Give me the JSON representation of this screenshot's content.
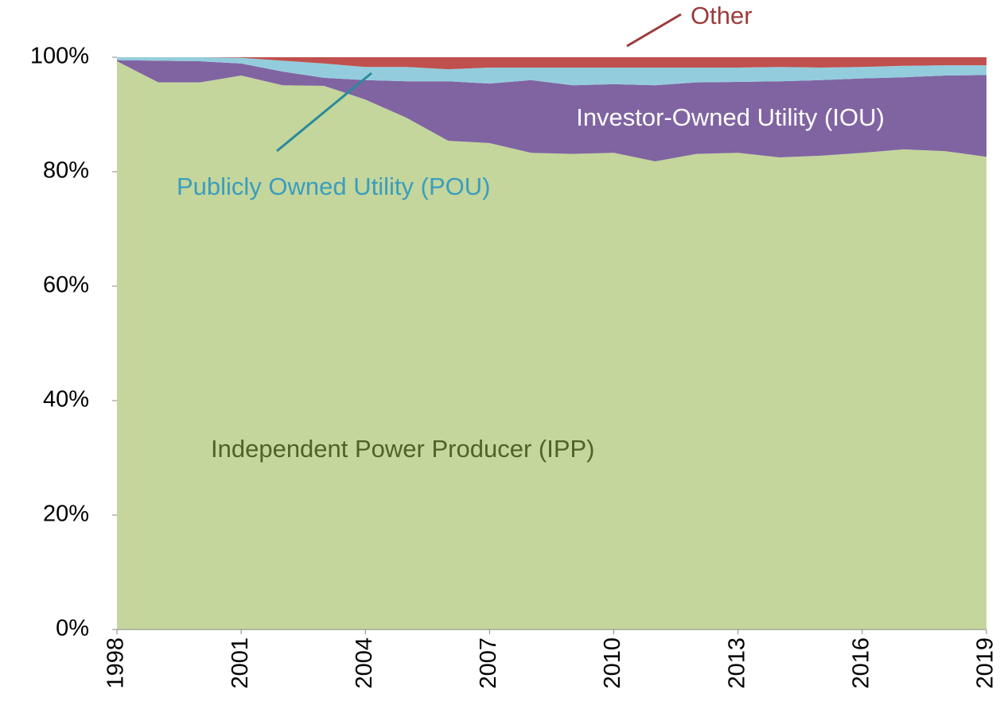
{
  "chart_data": {
    "type": "stacked_area",
    "x": [
      1998,
      1999,
      2000,
      2001,
      2002,
      2003,
      2004,
      2005,
      2006,
      2007,
      2008,
      2009,
      2010,
      2011,
      2012,
      2013,
      2014,
      2015,
      2016,
      2017,
      2018,
      2019
    ],
    "xlim": [
      1998,
      2019
    ],
    "xticks": [
      1998,
      2001,
      2004,
      2007,
      2010,
      2013,
      2016,
      2019
    ],
    "ylim": [
      0,
      100
    ],
    "yticks": [
      {
        "value": 0,
        "label": "0%"
      },
      {
        "value": 20,
        "label": "20%"
      },
      {
        "value": 40,
        "label": "40%"
      },
      {
        "value": 60,
        "label": "60%"
      },
      {
        "value": 80,
        "label": "80%"
      },
      {
        "value": 100,
        "label": "100%"
      }
    ],
    "series": [
      {
        "name": "Independent Power Producer (IPP)",
        "color": "#c4d69b",
        "label_color": "#4f6228",
        "values": [
          99.3,
          95.6,
          95.6,
          96.8,
          95.1,
          95.0,
          92.6,
          89.4,
          85.4,
          85.0,
          83.3,
          83.1,
          83.3,
          81.8,
          83.1,
          83.3,
          82.5,
          82.8,
          83.3,
          83.9,
          83.6,
          82.6
        ]
      },
      {
        "name": "Investor-Owned Utility (IOU)",
        "color": "#8064a2",
        "label_color": "#ffffff",
        "values": [
          0.2,
          3.8,
          3.7,
          2.1,
          2.4,
          1.4,
          3.4,
          6.4,
          10.4,
          10.4,
          12.7,
          12.0,
          12.0,
          13.3,
          12.5,
          12.4,
          13.3,
          13.2,
          13.0,
          12.6,
          13.2,
          14.3
        ]
      },
      {
        "name": "Publicly Owned Utility (POU)",
        "color": "#93cddd",
        "label_color": "#3a9dbf",
        "values": [
          0.5,
          0.6,
          0.7,
          1.0,
          1.9,
          2.5,
          2.3,
          2.5,
          2.1,
          2.8,
          2.2,
          3.1,
          2.9,
          3.1,
          2.6,
          2.5,
          2.5,
          2.2,
          2.0,
          2.0,
          1.8,
          1.7
        ]
      },
      {
        "name": "Other",
        "color": "#c0504d",
        "label_color": "#9b3b3b",
        "values": [
          0,
          0,
          0,
          0.1,
          0.6,
          1.1,
          1.7,
          1.7,
          2.1,
          1.8,
          1.8,
          1.8,
          1.8,
          1.8,
          1.8,
          1.8,
          1.7,
          1.8,
          1.7,
          1.5,
          1.4,
          1.4
        ]
      }
    ]
  }
}
